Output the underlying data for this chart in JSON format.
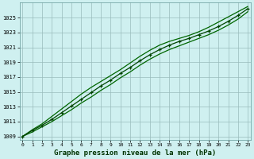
{
  "title": "Graphe pression niveau de la mer (hPa)",
  "background_color": "#cff0f0",
  "plot_bg_color": "#cff0f0",
  "grid_color": "#99bbbb",
  "line_color": "#006600",
  "line_color_dark": "#004400",
  "x": [
    0,
    1,
    2,
    3,
    4,
    5,
    6,
    7,
    8,
    9,
    10,
    11,
    12,
    13,
    14,
    15,
    16,
    17,
    18,
    19,
    20,
    21,
    22,
    23
  ],
  "y_main": [
    1009.0,
    1009.8,
    1010.5,
    1011.3,
    1012.2,
    1013.1,
    1014.0,
    1014.9,
    1015.8,
    1016.6,
    1017.5,
    1018.3,
    1019.2,
    1020.0,
    1020.7,
    1021.3,
    1021.8,
    1022.2,
    1022.7,
    1023.2,
    1023.8,
    1024.5,
    1025.3,
    1026.2
  ],
  "y_upper": [
    1009.0,
    1009.9,
    1010.7,
    1011.7,
    1012.7,
    1013.7,
    1014.7,
    1015.6,
    1016.4,
    1017.2,
    1018.0,
    1018.9,
    1019.8,
    1020.6,
    1021.3,
    1021.8,
    1022.2,
    1022.6,
    1023.1,
    1023.7,
    1024.4,
    1025.1,
    1025.8,
    1026.5
  ],
  "y_lower": [
    1009.0,
    1009.6,
    1010.3,
    1011.0,
    1011.8,
    1012.6,
    1013.5,
    1014.3,
    1015.2,
    1016.0,
    1016.9,
    1017.7,
    1018.6,
    1019.4,
    1020.1,
    1020.7,
    1021.2,
    1021.7,
    1022.2,
    1022.7,
    1023.3,
    1024.0,
    1024.8,
    1025.8
  ],
  "ylim": [
    1008.5,
    1027.0
  ],
  "yticks": [
    1009,
    1011,
    1013,
    1015,
    1017,
    1019,
    1021,
    1023,
    1025
  ],
  "xlim": [
    -0.3,
    23.3
  ],
  "xticks": [
    0,
    1,
    2,
    3,
    4,
    5,
    6,
    7,
    8,
    9,
    10,
    11,
    12,
    13,
    14,
    15,
    16,
    17,
    18,
    19,
    20,
    21,
    22,
    23
  ],
  "figwidth": 3.2,
  "figheight": 2.0,
  "dpi": 100
}
